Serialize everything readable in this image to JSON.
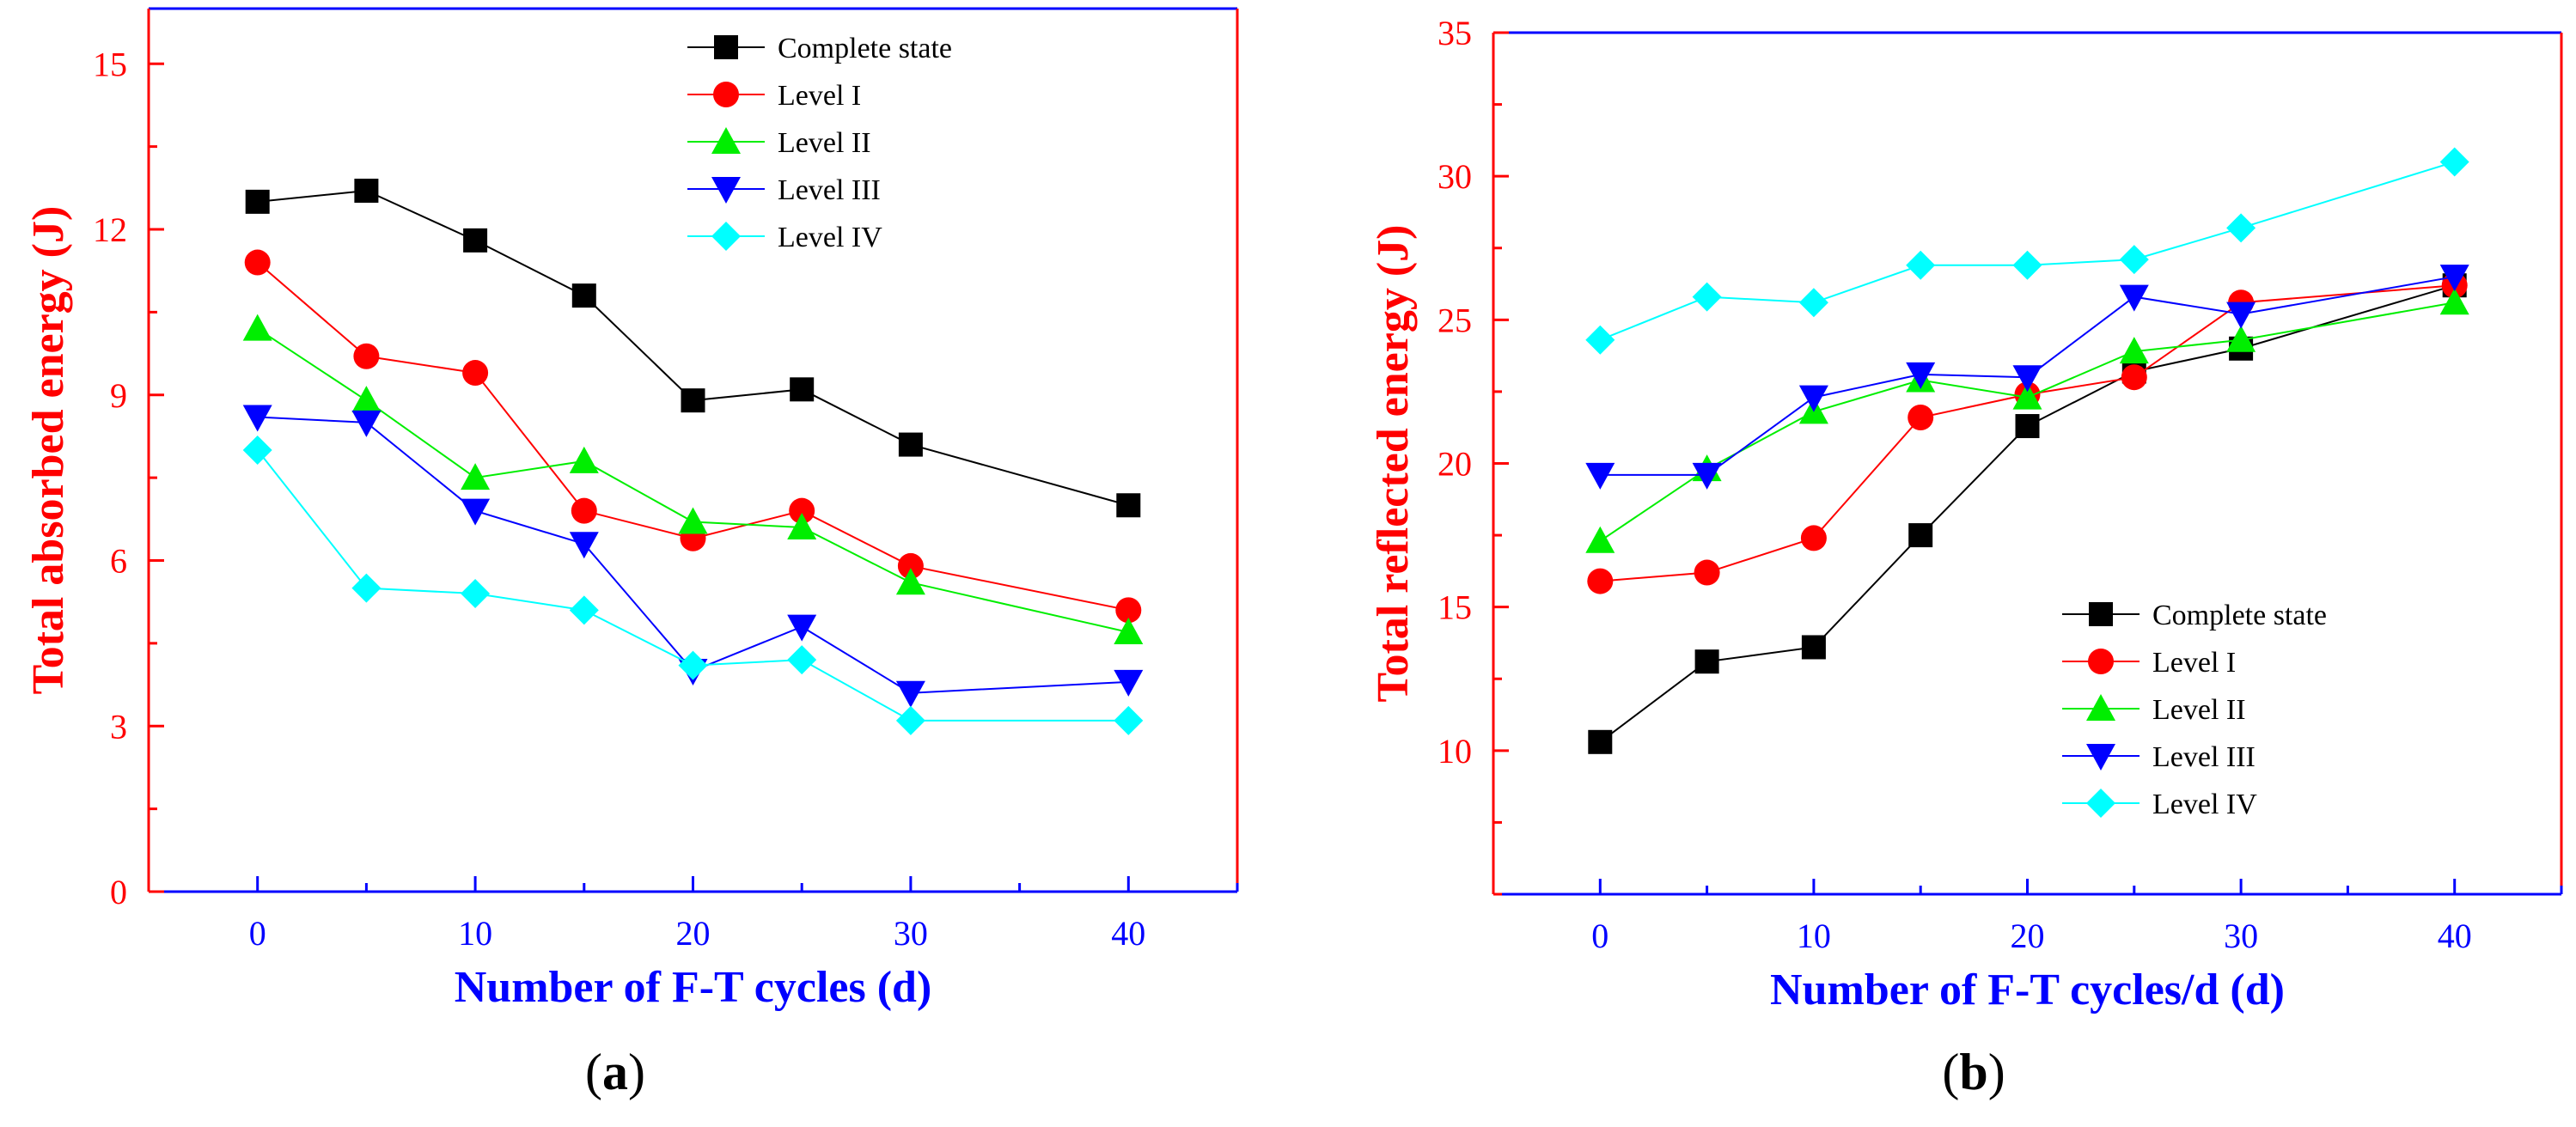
{
  "colors": {
    "y_axis": "#ff0000",
    "x_axis": "#0000ff",
    "frame_top": "#0000ff",
    "frame_right": "#ff0000"
  },
  "chart_data": [
    {
      "type": "line",
      "panel": "(a)",
      "panel_letter": "a",
      "title": "",
      "xlabel": "Number of F-T cycles (d)",
      "ylabel": "Total absorbed energy (J)",
      "xlim": [
        -5,
        45
      ],
      "ylim": [
        0,
        16
      ],
      "xticks": [
        0,
        10,
        20,
        30,
        40
      ],
      "xtick_labels": [
        "0",
        "10",
        "20",
        "30",
        "40"
      ],
      "yticks": [
        0,
        3,
        6,
        9,
        12,
        15
      ],
      "ytick_labels": [
        "0",
        "3",
        "6",
        "9",
        "12",
        "15"
      ],
      "x": [
        0,
        5,
        10,
        15,
        20,
        25,
        30,
        40
      ],
      "legend_position": "top-right",
      "series": [
        {
          "name": "Complete state",
          "color": "#000000",
          "marker": "square",
          "values": [
            12.5,
            12.7,
            11.8,
            10.8,
            8.9,
            9.1,
            8.1,
            7.0
          ]
        },
        {
          "name": "Level I",
          "color": "#ff0000",
          "marker": "circle",
          "values": [
            11.4,
            9.7,
            9.4,
            6.9,
            6.4,
            6.9,
            5.9,
            5.1
          ]
        },
        {
          "name": "Level II",
          "color": "#00ee00",
          "marker": "triangle-up",
          "values": [
            10.2,
            8.9,
            7.5,
            7.8,
            6.7,
            6.6,
            5.6,
            4.7
          ]
        },
        {
          "name": "Level III",
          "color": "#0000ff",
          "marker": "triangle-down",
          "values": [
            8.6,
            8.5,
            6.9,
            6.3,
            4.0,
            4.8,
            3.6,
            3.8
          ]
        },
        {
          "name": "Level IV",
          "color": "#00ffff",
          "marker": "diamond",
          "values": [
            8.0,
            5.5,
            5.4,
            5.1,
            4.1,
            4.2,
            3.1,
            3.1
          ]
        }
      ]
    },
    {
      "type": "line",
      "panel": "(b)",
      "panel_letter": "b",
      "title": "",
      "xlabel": "Number of F-T cycles/d (d)",
      "ylabel": "Total reflected energy (J)",
      "xlim": [
        -5,
        45
      ],
      "ylim": [
        5,
        35
      ],
      "xticks": [
        0,
        10,
        20,
        30,
        40
      ],
      "xtick_labels": [
        "0",
        "10",
        "20",
        "30",
        "40"
      ],
      "yticks": [
        10,
        15,
        20,
        25,
        30,
        35
      ],
      "ytick_labels": [
        "10",
        "15",
        "20",
        "25",
        "30",
        "35"
      ],
      "x": [
        0,
        5,
        10,
        15,
        20,
        25,
        30,
        40
      ],
      "legend_position": "bottom-right",
      "series": [
        {
          "name": "Complete state",
          "color": "#000000",
          "marker": "square",
          "values": [
            10.3,
            13.1,
            13.6,
            17.5,
            21.3,
            23.2,
            24.0,
            26.2
          ]
        },
        {
          "name": "Level I",
          "color": "#ff0000",
          "marker": "circle",
          "values": [
            15.9,
            16.2,
            17.4,
            21.6,
            22.4,
            23.0,
            25.6,
            26.2
          ]
        },
        {
          "name": "Level II",
          "color": "#00ee00",
          "marker": "triangle-up",
          "values": [
            17.3,
            19.8,
            21.8,
            22.9,
            22.3,
            23.9,
            24.3,
            25.6
          ]
        },
        {
          "name": "Level III",
          "color": "#0000ff",
          "marker": "triangle-down",
          "values": [
            19.6,
            19.6,
            22.3,
            23.1,
            23.0,
            25.8,
            25.2,
            26.5
          ]
        },
        {
          "name": "Level IV",
          "color": "#00ffff",
          "marker": "diamond",
          "values": [
            24.3,
            25.8,
            25.6,
            26.9,
            26.9,
            27.1,
            28.2,
            30.5
          ]
        }
      ]
    }
  ]
}
